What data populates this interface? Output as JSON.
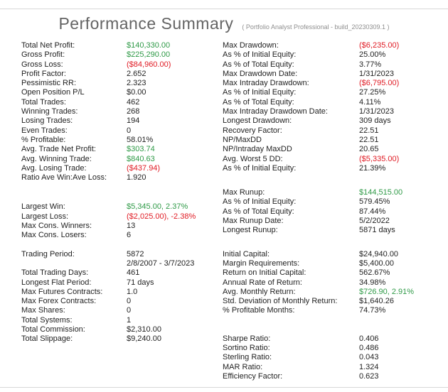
{
  "title": "Performance Summary",
  "subtitle": "( Portfolio Analyst Professional - build_20230309.1 )",
  "colors": {
    "positive": "#2f9a47",
    "negative": "#e01b24",
    "text": "#1f1f1f",
    "title_gray": "#646464",
    "divider": "#d8d8d8"
  },
  "left": {
    "groups": [
      {
        "rows": [
          {
            "label": "Total Net Profit:",
            "value": "$140,330.00",
            "tone": "positive"
          },
          {
            "label": "Gross Profit:",
            "value": "$225,290.00",
            "tone": "positive"
          },
          {
            "label": "Gross Loss:",
            "value": "($84,960.00)",
            "tone": "negative"
          },
          {
            "label": "Profit Factor:",
            "value": "2.652"
          },
          {
            "label": "Pessimistic RR:",
            "value": "2.323"
          },
          {
            "label": "Open Position P/L",
            "value": "$0.00"
          },
          {
            "label": "Total Trades:",
            "value": "462"
          },
          {
            "label": "Winning Trades:",
            "value": "268"
          },
          {
            "label": "Losing Trades:",
            "value": "194"
          },
          {
            "label": "Even Trades:",
            "value": "0"
          },
          {
            "label": "% Profitable:",
            "value": "58.01%"
          },
          {
            "label": "Avg. Trade Net Profit:",
            "value": "$303.74",
            "tone": "positive"
          },
          {
            "label": "Avg. Winning Trade:",
            "value": "$840.63",
            "tone": "positive"
          },
          {
            "label": "Avg. Losing Trade:",
            "value": "($437.94)",
            "tone": "negative"
          },
          {
            "label": "Ratio Ave Win:Ave Loss:",
            "value": "1.920"
          }
        ]
      },
      {
        "rows": [
          {
            "label": "Largest Win:",
            "value": "$5,345.00, 2.37%",
            "tone": "positive"
          },
          {
            "label": "Largest Loss:",
            "value": "($2,025.00), -2.38%",
            "tone": "negative"
          },
          {
            "label": "Max Cons. Winners:",
            "value": "13"
          },
          {
            "label": "Max Cons. Losers:",
            "value": "6"
          }
        ]
      },
      {
        "rows": [
          {
            "label": "Trading Period:",
            "value": "5872"
          },
          {
            "label": "",
            "value": "2/8/2007 - 3/7/2023"
          },
          {
            "label": "Total Trading Days:",
            "value": "461"
          },
          {
            "label": "Longest Flat Period:",
            "value": "71 days"
          },
          {
            "label": "Max Futures Contracts:",
            "value": "1.0"
          },
          {
            "label": "Max Forex Contracts:",
            "value": "0"
          },
          {
            "label": "Max Shares:",
            "value": "0"
          },
          {
            "label": "Total Systems:",
            "value": "1"
          },
          {
            "label": "Total Commission:",
            "value": "$2,310.00"
          },
          {
            "label": "Total Slippage:",
            "value": "$9,240.00"
          }
        ]
      }
    ]
  },
  "right": {
    "groups": [
      {
        "rows": [
          {
            "label": "Max Drawdown:",
            "value": "($6,235.00)",
            "tone": "negative"
          },
          {
            "label": "As % of Initial Equity:",
            "value": "25.00%"
          },
          {
            "label": "As % of Total Equity:",
            "value": "3.77%"
          },
          {
            "label": "Max Drawdown Date:",
            "value": "1/31/2023"
          },
          {
            "label": "Max Intraday Drawdown:",
            "value": "($6,795.00)",
            "tone": "negative"
          },
          {
            "label": "As % of Initial Equity:",
            "value": "27.25%"
          },
          {
            "label": "As % of Total Equity:",
            "value": "4.11%"
          },
          {
            "label": "Max Intraday Drawdown Date:",
            "value": "1/31/2023"
          },
          {
            "label": "Longest Drawdown:",
            "value": "309 days"
          },
          {
            "label": "Recovery Factor:",
            "value": "22.51"
          },
          {
            "label": "NP/MaxDD",
            "value": "22.51"
          },
          {
            "label": "NP/Intraday MaxDD",
            "value": "20.65"
          },
          {
            "label": "Avg. Worst 5 DD:",
            "value": "($5,335.00)",
            "tone": "negative"
          },
          {
            "label": "As % of Initial Equity:",
            "value": "21.39%"
          }
        ]
      },
      {
        "rows": [
          {
            "label": "Max Runup:",
            "value": "$144,515.00",
            "tone": "positive"
          },
          {
            "label": "As % of Initial Equity:",
            "value": "579.45%"
          },
          {
            "label": "As % of Total Equity:",
            "value": "87.44%"
          },
          {
            "label": "Max Runup Date:",
            "value": "5/2/2022"
          },
          {
            "label": "Longest Runup:",
            "value": "5871 days"
          }
        ]
      },
      {
        "rows": [
          {
            "label": "Initial Capital:",
            "value": "$24,940.00"
          },
          {
            "label": "Margin Requirements:",
            "value": "$5,400.00"
          },
          {
            "label": "Return on Initial Capital:",
            "value": "562.67%"
          },
          {
            "label": "Annual Rate of Return:",
            "value": "34.98%"
          },
          {
            "label": "Avg. Monthly Return:",
            "value": "$726.90, 2.91%",
            "tone": "positive"
          },
          {
            "label": "Std. Deviation of Monthly Return:",
            "value": "$1,640.26"
          },
          {
            "label": "% Profitable Months:",
            "value": "74.73%"
          }
        ]
      },
      {
        "rows": [
          {
            "label": "Sharpe Ratio:",
            "value": "0.406"
          },
          {
            "label": "Sortino Ratio:",
            "value": "0.486"
          },
          {
            "label": "Sterling Ratio:",
            "value": "0.043"
          },
          {
            "label": "MAR Ratio:",
            "value": "1.324"
          },
          {
            "label": "Efficiency Factor:",
            "value": "0.623"
          }
        ]
      }
    ]
  }
}
